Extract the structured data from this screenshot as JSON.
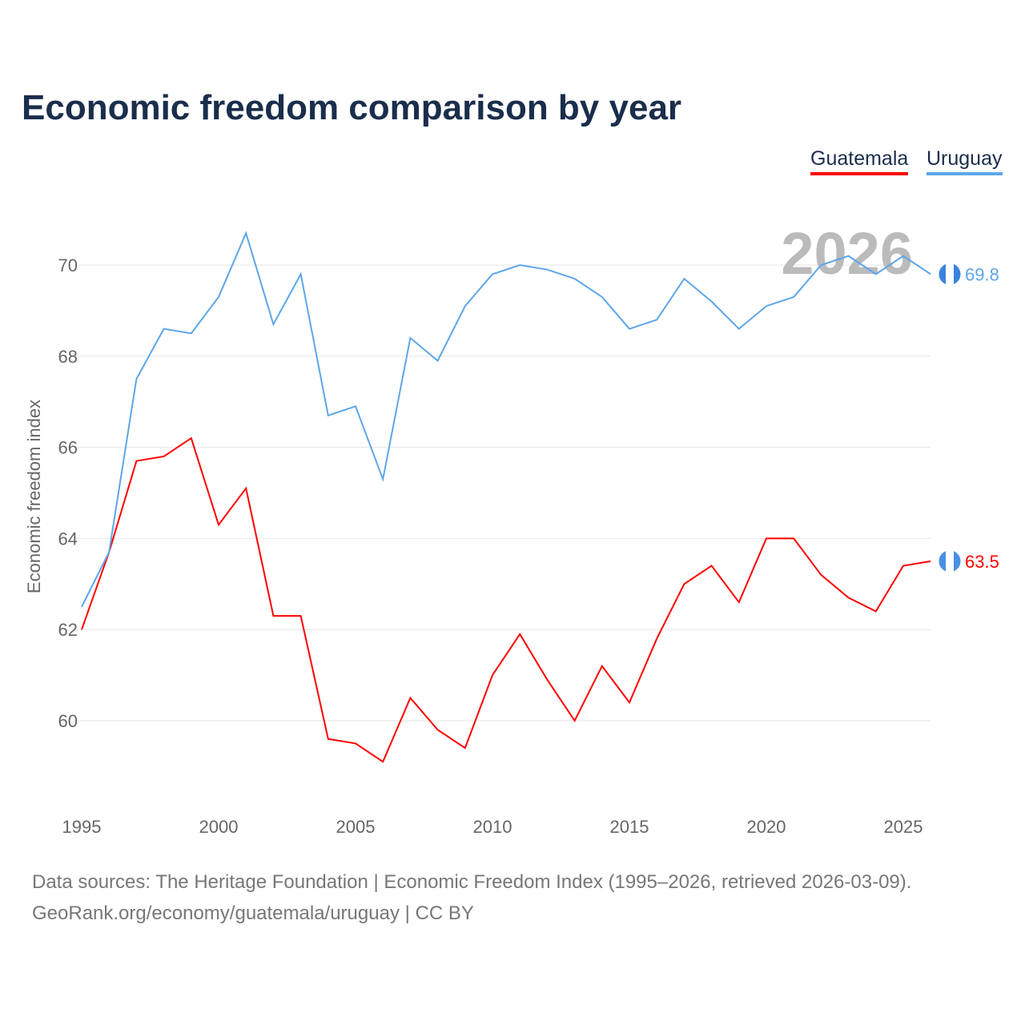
{
  "title": "Economic freedom comparison by year",
  "footer": {
    "line1": "Data sources: The Heritage Foundation | Economic Freedom Index (1995–2026, retrieved 2026-03-09).",
    "line2": "GeoRank.org/economy/guatemala/uruguay | CC BY"
  },
  "chart_data": {
    "type": "line",
    "title": "Economic freedom comparison by year",
    "xlabel": "",
    "ylabel": "Economic freedom index",
    "xlim": [
      1995,
      2026
    ],
    "ylim": [
      58,
      72
    ],
    "xticks": [
      1995,
      2000,
      2005,
      2010,
      2015,
      2020,
      2025
    ],
    "yticks": [
      60,
      62,
      64,
      66,
      68,
      70
    ],
    "grid": true,
    "legend_position": "top-right",
    "year_watermark": "2026",
    "x": [
      1995,
      1996,
      1997,
      1998,
      1999,
      2000,
      2001,
      2002,
      2003,
      2004,
      2005,
      2006,
      2007,
      2008,
      2009,
      2010,
      2011,
      2012,
      2013,
      2014,
      2015,
      2016,
      2017,
      2018,
      2019,
      2020,
      2021,
      2022,
      2023,
      2024,
      2025,
      2026
    ],
    "series": [
      {
        "name": "Guatemala",
        "color": "#ff0000",
        "end_label": "63.5",
        "values": [
          62.0,
          63.7,
          65.7,
          65.8,
          66.2,
          64.3,
          65.1,
          62.3,
          62.3,
          59.6,
          59.5,
          59.1,
          60.5,
          59.8,
          59.4,
          61.0,
          61.9,
          60.9,
          60.0,
          61.2,
          60.4,
          61.8,
          63.0,
          63.4,
          62.6,
          64.0,
          64.0,
          63.2,
          62.7,
          62.4,
          63.4,
          63.5
        ]
      },
      {
        "name": "Uruguay",
        "color": "#5ea6ea",
        "end_label": "69.8",
        "values": [
          62.5,
          63.7,
          67.5,
          68.6,
          68.5,
          69.3,
          70.7,
          68.7,
          69.8,
          66.7,
          66.9,
          65.3,
          68.4,
          67.9,
          69.1,
          69.8,
          70.0,
          69.9,
          69.7,
          69.3,
          68.6,
          68.8,
          69.7,
          69.2,
          68.6,
          69.1,
          69.3,
          70.0,
          70.2,
          69.8,
          70.2,
          69.8
        ]
      }
    ]
  }
}
